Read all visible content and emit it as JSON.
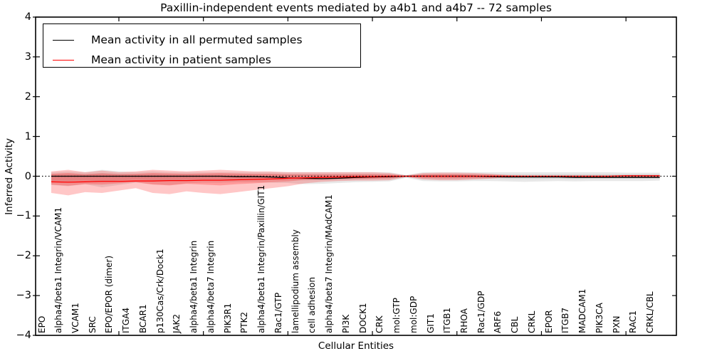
{
  "figure": {
    "title": "Paxillin-independent events mediated by a4b1 and a4b7 -- 72 samples",
    "xlabel": "Cellular Entities",
    "ylabel": "Inferred Activity"
  },
  "legend": {
    "items": [
      {
        "label": "Mean activity in all permuted samples",
        "color": "#000000"
      },
      {
        "label": "Mean activity in patient samples",
        "color": "#ff0000"
      }
    ]
  },
  "chart_data": {
    "type": "line",
    "title": "Paxillin-independent events mediated by a4b1 and a4b7 -- 72 samples",
    "xlabel": "Cellular Entities",
    "ylabel": "Inferred Activity",
    "ylim": [
      -4,
      4
    ],
    "yticks": [
      4,
      3,
      2,
      1,
      0,
      -1,
      -2,
      -3,
      -4
    ],
    "xtick_marks_at_category_index": [
      4,
      9,
      14,
      19,
      24,
      29,
      34
    ],
    "grid": false,
    "legend_position": "upper left",
    "zero_line": {
      "style": "dotted",
      "y": 0,
      "color": "#000000"
    },
    "categories": [
      "EPO",
      "alpha4/beta1 Integrin/VCAM1",
      "VCAM1",
      "SRC",
      "EPO/EPOR (dimer)",
      "ITGA4",
      "BCAR1",
      "p130Cas/Crk/Dock1",
      "JAK2",
      "alpha4/beta1 Integrin",
      "alpha4/beta7 Integrin",
      "PIK3R1",
      "PTK2",
      "alpha4/beta1 Integrin/Paxillin/GIT1",
      "Rac1/GTP",
      "lamellipodium assembly",
      "cell adhesion",
      "alpha4/beta7 Integrin/MAdCAM1",
      "PI3K",
      "DOCK1",
      "CRK",
      "mol:GTP",
      "mol:GDP",
      "GIT1",
      "ITGB1",
      "RHOA",
      "Rac1/GDP",
      "ARF6",
      "CBL",
      "CRKL",
      "EPOR",
      "ITGB7",
      "MADCAM1",
      "PIK3CA",
      "PXN",
      "RAC1",
      "CRKL/CBL"
    ],
    "series": [
      {
        "name": "Mean activity in all permuted samples",
        "color": "#000000",
        "values": [
          0,
          0,
          0,
          0,
          0,
          0,
          0,
          0,
          0,
          0,
          0,
          -0.01,
          -0.01,
          -0.02,
          -0.04,
          -0.05,
          -0.06,
          -0.05,
          -0.03,
          -0.02,
          -0.01,
          0,
          0,
          0,
          0,
          0,
          -0.01,
          -0.02,
          -0.02,
          -0.02,
          -0.02,
          -0.03,
          -0.03,
          -0.03,
          -0.03,
          -0.03,
          -0.03
        ]
      },
      {
        "name": "Mean activity in patient samples",
        "color": "#ff0000",
        "values": [
          -0.14,
          -0.15,
          -0.14,
          -0.13,
          -0.13,
          -0.12,
          -0.12,
          -0.11,
          -0.11,
          -0.1,
          -0.1,
          -0.09,
          -0.08,
          -0.07,
          -0.05,
          -0.04,
          -0.03,
          -0.02,
          -0.01,
          -0.01,
          0,
          0,
          0,
          0,
          0,
          0,
          0,
          0,
          0,
          0,
          0,
          0,
          0,
          0,
          0.01,
          0.01,
          0.01
        ]
      }
    ],
    "bands": [
      {
        "name": "permuted-samples-range-outer",
        "color": "#808080",
        "opacity": 0.18,
        "hi": [
          0.1,
          0.12,
          0.1,
          0.16,
          0.12,
          0.1,
          0.12,
          0.1,
          0.1,
          0.1,
          0.1,
          0.1,
          0.1,
          0.1,
          0.1,
          0.1,
          0.1,
          0.1,
          0.1,
          0.1,
          0.1,
          0.03,
          0.1,
          0.1,
          0.1,
          0.1,
          0.1,
          0.1,
          0.1,
          0.1,
          0.1,
          0.1,
          0.1,
          0.1,
          0.09,
          0.09,
          0.09
        ],
        "lo": [
          -0.22,
          -0.25,
          -0.2,
          -0.28,
          -0.22,
          -0.16,
          -0.2,
          -0.22,
          -0.18,
          -0.16,
          -0.16,
          -0.15,
          -0.15,
          -0.16,
          -0.17,
          -0.2,
          -0.19,
          -0.17,
          -0.15,
          -0.14,
          -0.13,
          -0.04,
          -0.12,
          -0.13,
          -0.13,
          -0.12,
          -0.12,
          -0.13,
          -0.14,
          -0.13,
          -0.12,
          -0.13,
          -0.12,
          -0.12,
          -0.12,
          -0.12,
          -0.11
        ]
      },
      {
        "name": "permuted-samples-range-inner",
        "color": "#808080",
        "opacity": 0.18,
        "hi": [
          0.05,
          0.06,
          0.05,
          0.08,
          0.06,
          0.05,
          0.06,
          0.05,
          0.05,
          0.05,
          0.05,
          0.05,
          0.05,
          0.05,
          0.05,
          0.05,
          0.05,
          0.05,
          0.05,
          0.05,
          0.05,
          0.02,
          0.05,
          0.05,
          0.05,
          0.05,
          0.05,
          0.05,
          0.05,
          0.05,
          0.05,
          0.05,
          0.05,
          0.05,
          0.05,
          0.05,
          0.05
        ],
        "lo": [
          -0.11,
          -0.13,
          -0.1,
          -0.14,
          -0.11,
          -0.08,
          -0.1,
          -0.11,
          -0.09,
          -0.08,
          -0.08,
          -0.08,
          -0.08,
          -0.08,
          -0.09,
          -0.1,
          -0.1,
          -0.09,
          -0.08,
          -0.07,
          -0.07,
          -0.02,
          -0.06,
          -0.07,
          -0.07,
          -0.06,
          -0.06,
          -0.07,
          -0.07,
          -0.07,
          -0.06,
          -0.07,
          -0.06,
          -0.06,
          -0.06,
          -0.06,
          -0.06
        ]
      },
      {
        "name": "patient-samples-range-outer",
        "color": "#ff0000",
        "opacity": 0.22,
        "hi": [
          0.12,
          0.16,
          0.1,
          0.14,
          0.1,
          0.12,
          0.16,
          0.14,
          0.12,
          0.14,
          0.16,
          0.14,
          0.12,
          0.12,
          0.1,
          0.1,
          0.1,
          0.1,
          0.1,
          0.1,
          0.08,
          0.02,
          0.08,
          0.09,
          0.09,
          0.08,
          0.06,
          0.03,
          0.02,
          0.02,
          0.02,
          0.02,
          0.02,
          0.02,
          0.03,
          0.03,
          0.03
        ],
        "lo": [
          -0.42,
          -0.48,
          -0.4,
          -0.42,
          -0.36,
          -0.3,
          -0.42,
          -0.45,
          -0.38,
          -0.42,
          -0.45,
          -0.4,
          -0.35,
          -0.3,
          -0.25,
          -0.18,
          -0.14,
          -0.12,
          -0.11,
          -0.11,
          -0.1,
          -0.02,
          -0.08,
          -0.1,
          -0.1,
          -0.08,
          -0.06,
          -0.03,
          -0.02,
          -0.02,
          -0.02,
          -0.02,
          -0.02,
          -0.02,
          -0.02,
          -0.02,
          -0.02
        ]
      },
      {
        "name": "patient-samples-range-inner",
        "color": "#ff0000",
        "opacity": 0.22,
        "hi": [
          0.06,
          0.08,
          0.05,
          0.07,
          0.05,
          0.06,
          0.08,
          0.07,
          0.06,
          0.07,
          0.08,
          0.07,
          0.06,
          0.06,
          0.05,
          0.05,
          0.05,
          0.05,
          0.05,
          0.05,
          0.04,
          0.01,
          0.04,
          0.05,
          0.05,
          0.04,
          0.03,
          0.02,
          0.01,
          0.01,
          0.01,
          0.01,
          0.01,
          0.01,
          0.02,
          0.02,
          0.02
        ],
        "lo": [
          -0.21,
          -0.24,
          -0.2,
          -0.21,
          -0.18,
          -0.15,
          -0.21,
          -0.23,
          -0.19,
          -0.21,
          -0.23,
          -0.2,
          -0.18,
          -0.15,
          -0.13,
          -0.09,
          -0.07,
          -0.06,
          -0.06,
          -0.06,
          -0.05,
          -0.01,
          -0.04,
          -0.05,
          -0.05,
          -0.04,
          -0.03,
          -0.02,
          -0.01,
          -0.01,
          -0.01,
          -0.01,
          -0.01,
          -0.01,
          -0.01,
          -0.01,
          -0.01
        ]
      }
    ]
  }
}
